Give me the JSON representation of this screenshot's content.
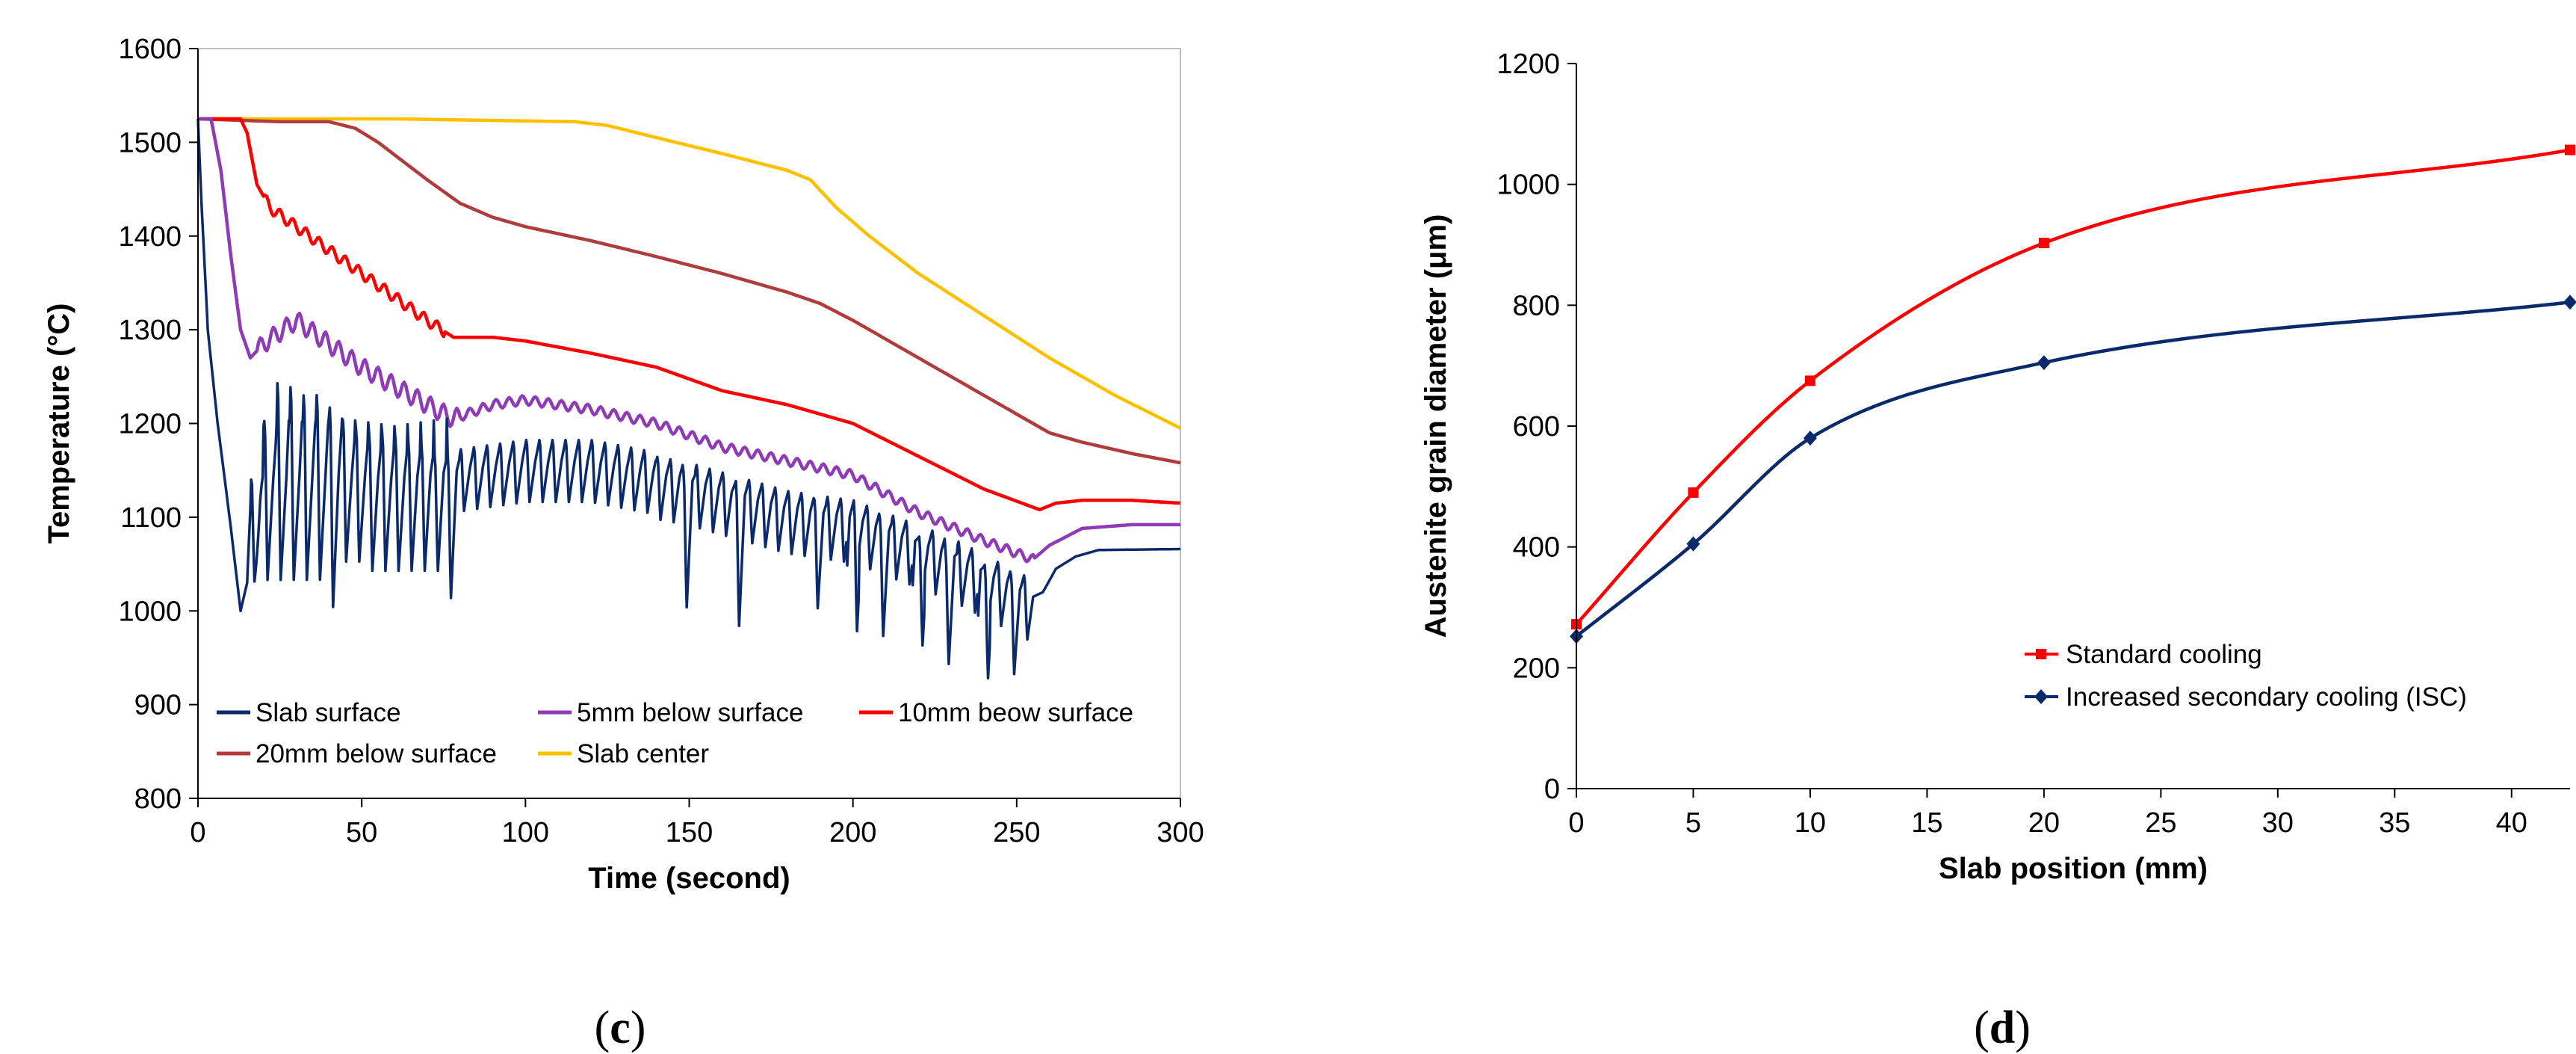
{
  "chart_data": [
    {
      "id": "c",
      "type": "line",
      "caption_open": "(",
      "caption_letter": "c",
      "caption_close": ")",
      "xlabel": "Time (second)",
      "ylabel": "Temperature (°C)",
      "xlim": [
        0,
        300
      ],
      "ylim": [
        800,
        1600
      ],
      "xticks": [
        "0",
        "50",
        "100",
        "150",
        "200",
        "250",
        "300"
      ],
      "yticks": [
        "800",
        "900",
        "1000",
        "1100",
        "1200",
        "1300",
        "1400",
        "1500",
        "1600"
      ],
      "grid": false,
      "legend_position": "bottom-left",
      "series": [
        {
          "name": "Slab surface",
          "color": "#0b2a6b",
          "oscillating": true,
          "osc_start": 15,
          "osc_end": 255,
          "points": [
            [
              0,
              1525
            ],
            [
              1,
              1440
            ],
            [
              3,
              1300
            ],
            [
              6,
              1200
            ],
            [
              10,
              1090
            ],
            [
              13,
              1000
            ],
            [
              15,
              1030
            ],
            [
              20,
              1140
            ],
            [
              40,
              1150
            ],
            [
              60,
              1140
            ],
            [
              80,
              1150
            ],
            [
              100,
              1160
            ],
            [
              120,
              1160
            ],
            [
              150,
              1140
            ],
            [
              180,
              1110
            ],
            [
              200,
              1100
            ],
            [
              230,
              1060
            ],
            [
              255,
              1015
            ],
            [
              258,
              1020
            ],
            [
              262,
              1045
            ],
            [
              268,
              1058
            ],
            [
              275,
              1065
            ],
            [
              300,
              1066
            ]
          ],
          "spikes": [
            [
              18,
              1150,
              1030
            ],
            [
              22,
              1210,
              1030
            ],
            [
              26,
              1255,
              1030
            ],
            [
              30,
              1250,
              1030
            ],
            [
              34,
              1240,
              1030
            ],
            [
              38,
              1240,
              1030
            ],
            [
              42,
              1225,
              1000
            ],
            [
              46,
              1210,
              1050
            ],
            [
              50,
              1200,
              1050
            ],
            [
              54,
              1195,
              1040
            ],
            [
              58,
              1195,
              1040
            ],
            [
              62,
              1190,
              1040
            ],
            [
              66,
              1185,
              1040
            ],
            [
              70,
              1180,
              1040
            ],
            [
              74,
              1170,
              1040
            ],
            [
              78,
              1170,
              1010
            ],
            [
              150,
              1150,
              1000
            ],
            [
              165,
              1140,
              980
            ],
            [
              190,
              1120,
              1000
            ],
            [
              200,
              1120,
              975
            ],
            [
              210,
              1100,
              970
            ],
            [
              220,
              1080,
              960
            ],
            [
              230,
              1065,
              940
            ],
            [
              240,
              1050,
              925
            ],
            [
              250,
              1040,
              930
            ]
          ]
        },
        {
          "name": "5mm below surface",
          "color": "#8e3bb5",
          "oscillating": true,
          "osc_start": 18,
          "osc_end": 255,
          "points": [
            [
              0,
              1525
            ],
            [
              4,
              1525
            ],
            [
              7,
              1470
            ],
            [
              10,
              1380
            ],
            [
              13,
              1300
            ],
            [
              16,
              1270
            ],
            [
              20,
              1285
            ],
            [
              30,
              1310
            ],
            [
              40,
              1285
            ],
            [
              50,
              1260
            ],
            [
              60,
              1240
            ],
            [
              70,
              1220
            ],
            [
              78,
              1205
            ],
            [
              90,
              1220
            ],
            [
              100,
              1225
            ],
            [
              120,
              1215
            ],
            [
              140,
              1200
            ],
            [
              160,
              1175
            ],
            [
              180,
              1160
            ],
            [
              200,
              1145
            ],
            [
              220,
              1105
            ],
            [
              240,
              1075
            ],
            [
              255,
              1055
            ],
            [
              260,
              1070
            ],
            [
              270,
              1088
            ],
            [
              285,
              1092
            ],
            [
              300,
              1092
            ]
          ]
        },
        {
          "name": "10mm beow surface",
          "color": "#ff0000",
          "oscillating": true,
          "osc_start": 20,
          "osc_end": 75,
          "points": [
            [
              0,
              1525
            ],
            [
              13,
              1525
            ],
            [
              15,
              1510
            ],
            [
              18,
              1455
            ],
            [
              22,
              1430
            ],
            [
              30,
              1410
            ],
            [
              40,
              1385
            ],
            [
              50,
              1360
            ],
            [
              60,
              1335
            ],
            [
              70,
              1310
            ],
            [
              78,
              1292
            ],
            [
              90,
              1292
            ],
            [
              100,
              1288
            ],
            [
              120,
              1275
            ],
            [
              140,
              1260
            ],
            [
              160,
              1235
            ],
            [
              180,
              1220
            ],
            [
              200,
              1200
            ],
            [
              220,
              1165
            ],
            [
              240,
              1130
            ],
            [
              257,
              1108
            ],
            [
              262,
              1115
            ],
            [
              270,
              1118
            ],
            [
              285,
              1118
            ],
            [
              300,
              1115
            ]
          ]
        },
        {
          "name": "20mm below surface",
          "color": "#b03c3c",
          "oscillating": false,
          "points": [
            [
              0,
              1525
            ],
            [
              25,
              1522
            ],
            [
              40,
              1522
            ],
            [
              48,
              1515
            ],
            [
              55,
              1500
            ],
            [
              70,
              1460
            ],
            [
              80,
              1435
            ],
            [
              90,
              1420
            ],
            [
              100,
              1410
            ],
            [
              120,
              1395
            ],
            [
              140,
              1378
            ],
            [
              160,
              1360
            ],
            [
              180,
              1340
            ],
            [
              190,
              1328
            ],
            [
              200,
              1310
            ],
            [
              220,
              1270
            ],
            [
              240,
              1230
            ],
            [
              260,
              1190
            ],
            [
              270,
              1180
            ],
            [
              285,
              1168
            ],
            [
              300,
              1158
            ]
          ]
        },
        {
          "name": "Slab center",
          "color": "#ffc000",
          "oscillating": false,
          "points": [
            [
              0,
              1525
            ],
            [
              60,
              1525
            ],
            [
              115,
              1522
            ],
            [
              125,
              1518
            ],
            [
              140,
              1505
            ],
            [
              160,
              1488
            ],
            [
              180,
              1470
            ],
            [
              187,
              1460
            ],
            [
              195,
              1430
            ],
            [
              205,
              1400
            ],
            [
              220,
              1360
            ],
            [
              240,
              1315
            ],
            [
              260,
              1270
            ],
            [
              280,
              1230
            ],
            [
              300,
              1195
            ]
          ]
        }
      ]
    },
    {
      "id": "d",
      "type": "line",
      "caption_open": "(",
      "caption_letter": "d",
      "caption_close": ")",
      "xlabel": "Slab position (mm)",
      "ylabel": "Austenite grain diameter (μm)",
      "xlim": [
        0,
        42.5
      ],
      "ylim": [
        0,
        1200
      ],
      "xticks": [
        "0",
        "5",
        "10",
        "15",
        "20",
        "25",
        "30",
        "35",
        "40"
      ],
      "yticks": [
        "0",
        "200",
        "400",
        "600",
        "800",
        "1000",
        "1200"
      ],
      "grid": false,
      "legend_position": "bottom-right",
      "series": [
        {
          "name": "Standard cooling",
          "color": "#ff0000",
          "marker": "square",
          "x": [
            0,
            5,
            10,
            20,
            42.5
          ],
          "y": [
            272,
            490,
            675,
            903,
            1057
          ]
        },
        {
          "name": "Increased secondary cooling (ISC)",
          "color": "#0b2a6b",
          "marker": "diamond",
          "x": [
            0,
            5,
            10,
            20,
            42.5
          ],
          "y": [
            252,
            405,
            580,
            705,
            805
          ]
        }
      ]
    }
  ]
}
